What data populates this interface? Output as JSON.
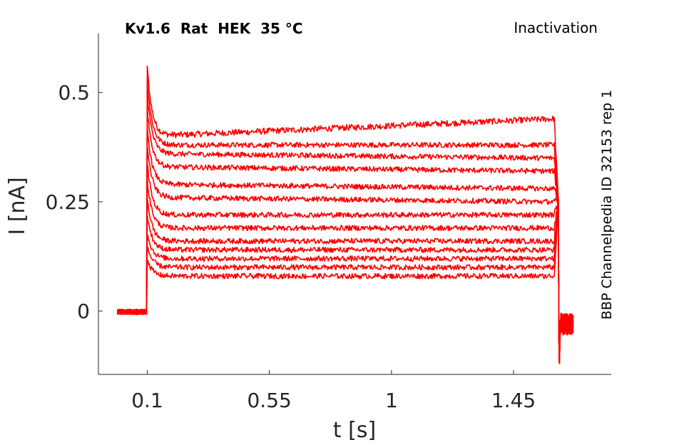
{
  "chart_data": {
    "type": "line",
    "title": "Kv1.6  Rat  HEK  35 °C",
    "subtitle": "Inactivation",
    "side_label": "BBP Channelpedia ID 32153 rep 1",
    "xlabel": "t [s]",
    "ylabel": "I [nA]",
    "xlim": [
      -0.08,
      1.81
    ],
    "ylim": [
      -0.145,
      0.635
    ],
    "x_ticks": [
      0.1,
      0.55,
      1,
      1.45
    ],
    "x_tick_labels": [
      "0.1",
      "0.55",
      "1",
      "1.45"
    ],
    "y_ticks": [
      0,
      0.25,
      0.5
    ],
    "y_tick_labels": [
      "0",
      "0.25",
      "0.5"
    ],
    "grid": false,
    "box": "left-bottom",
    "color": "#ff0000",
    "protocol": {
      "baseline_start": -0.01,
      "step_on": 0.1,
      "step_off": 1.6,
      "tail_end": 1.67
    },
    "series_count": 13,
    "series": [
      {
        "peak": 0.56,
        "start": 0.4,
        "end": 0.44,
        "noise": 0.007
      },
      {
        "peak": 0.53,
        "start": 0.38,
        "end": 0.38,
        "noise": 0.006
      },
      {
        "peak": 0.5,
        "start": 0.36,
        "end": 0.35,
        "noise": 0.006
      },
      {
        "peak": 0.46,
        "start": 0.33,
        "end": 0.32,
        "noise": 0.006
      },
      {
        "peak": 0.42,
        "start": 0.29,
        "end": 0.28,
        "noise": 0.006
      },
      {
        "peak": 0.38,
        "start": 0.26,
        "end": 0.25,
        "noise": 0.006
      },
      {
        "peak": 0.34,
        "start": 0.22,
        "end": 0.22,
        "noise": 0.006
      },
      {
        "peak": 0.3,
        "start": 0.19,
        "end": 0.19,
        "noise": 0.006
      },
      {
        "peak": 0.26,
        "start": 0.16,
        "end": 0.16,
        "noise": 0.006
      },
      {
        "peak": 0.22,
        "start": 0.14,
        "end": 0.14,
        "noise": 0.006
      },
      {
        "peak": 0.18,
        "start": 0.12,
        "end": 0.12,
        "noise": 0.006
      },
      {
        "peak": 0.15,
        "start": 0.1,
        "end": 0.1,
        "noise": 0.006
      },
      {
        "peak": 0.12,
        "start": 0.08,
        "end": 0.08,
        "noise": 0.006
      }
    ]
  }
}
